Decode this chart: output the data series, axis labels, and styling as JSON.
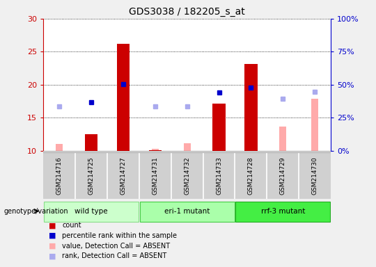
{
  "title": "GDS3038 / 182205_s_at",
  "samples": [
    "GSM214716",
    "GSM214725",
    "GSM214727",
    "GSM214731",
    "GSM214732",
    "GSM214733",
    "GSM214728",
    "GSM214729",
    "GSM214730"
  ],
  "groups": [
    {
      "label": "wild type",
      "indices": [
        0,
        1,
        2
      ],
      "color": "#ccffcc",
      "edge_color": "#88dd88"
    },
    {
      "label": "eri-1 mutant",
      "indices": [
        3,
        4,
        5
      ],
      "color": "#aaffaa",
      "edge_color": "#44cc44"
    },
    {
      "label": "rrf-3 mutant",
      "indices": [
        6,
        7,
        8
      ],
      "color": "#44ee44",
      "edge_color": "#22aa22"
    }
  ],
  "count_values": [
    null,
    12.5,
    26.2,
    10.1,
    null,
    17.1,
    23.1,
    null,
    null
  ],
  "count_color": "#cc0000",
  "percentile_values": [
    null,
    17.4,
    20.1,
    null,
    null,
    18.8,
    19.6,
    null,
    null
  ],
  "percentile_color": "#0000cc",
  "absent_value_values": [
    11.1,
    null,
    null,
    10.3,
    11.2,
    null,
    null,
    13.7,
    17.9
  ],
  "absent_value_color": "#ffaaaa",
  "absent_rank_values": [
    16.7,
    null,
    null,
    16.7,
    16.7,
    null,
    null,
    17.9,
    18.9
  ],
  "absent_rank_color": "#aaaaee",
  "ylim_left": [
    10,
    30
  ],
  "ylim_right": [
    0,
    100
  ],
  "yticks_left": [
    10,
    15,
    20,
    25,
    30
  ],
  "yticks_right": [
    0,
    25,
    50,
    75,
    100
  ],
  "ytick_labels_right": [
    "0%",
    "25%",
    "50%",
    "75%",
    "100%"
  ],
  "left_axis_color": "#cc0000",
  "right_axis_color": "#0000cc",
  "background_color": "#f0f0f0",
  "plot_bg_color": "#ffffff",
  "marker_size": 5,
  "bar_width": 0.4,
  "genotype_label": "genotype/variation",
  "sample_area_color": "#d0d0d0",
  "grid_color": "black",
  "grid_style": ":",
  "legend_items": [
    {
      "color": "#cc0000",
      "label": "count"
    },
    {
      "color": "#0000cc",
      "label": "percentile rank within the sample"
    },
    {
      "color": "#ffaaaa",
      "label": "value, Detection Call = ABSENT"
    },
    {
      "color": "#aaaaee",
      "label": "rank, Detection Call = ABSENT"
    }
  ]
}
